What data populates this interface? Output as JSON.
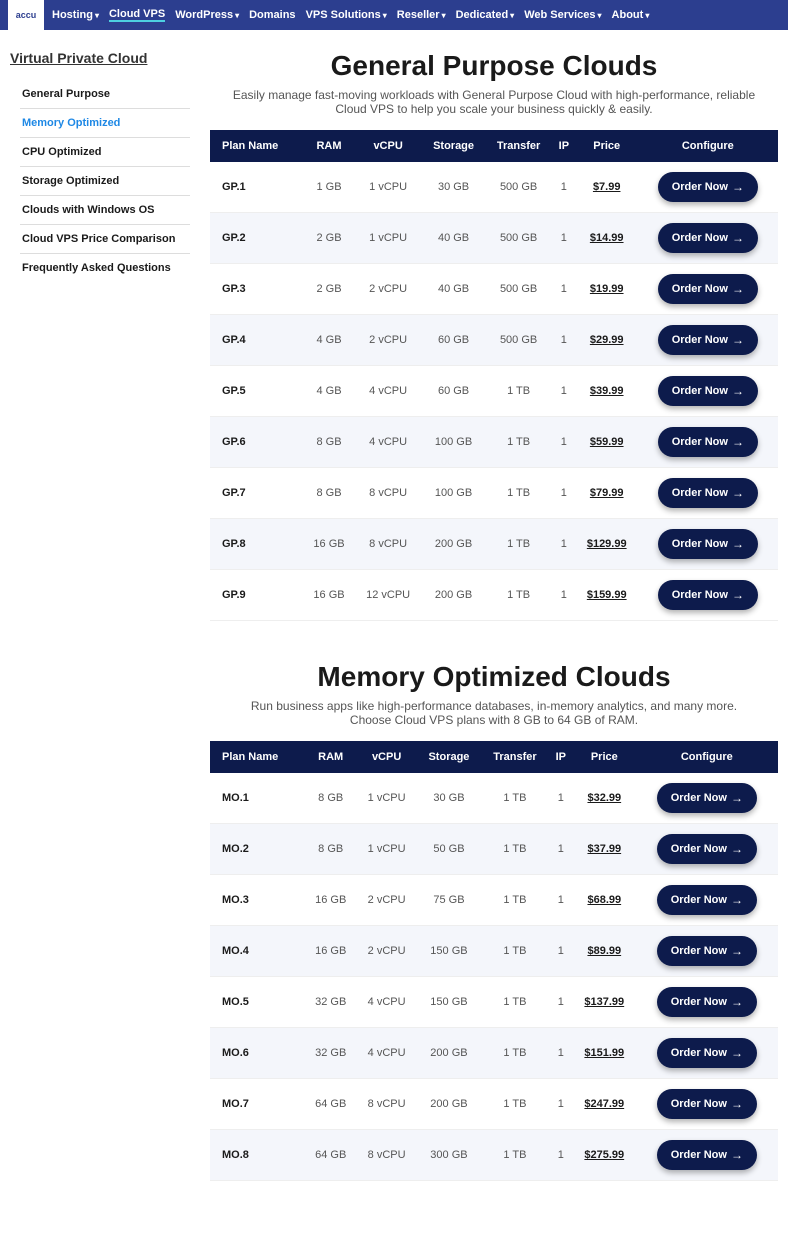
{
  "logo": "accu",
  "nav": [
    {
      "label": "Hosting",
      "caret": true
    },
    {
      "label": "Cloud VPS",
      "caret": false,
      "active": true
    },
    {
      "label": "WordPress",
      "caret": true
    },
    {
      "label": "Domains",
      "caret": false
    },
    {
      "label": "VPS Solutions",
      "caret": true
    },
    {
      "label": "Reseller",
      "caret": true
    },
    {
      "label": "Dedicated",
      "caret": true
    },
    {
      "label": "Web Services",
      "caret": true
    },
    {
      "label": "About",
      "caret": true
    }
  ],
  "sidebar": {
    "title": "Virtual Private Cloud",
    "items": [
      {
        "label": "General Purpose"
      },
      {
        "label": "Memory Optimized",
        "active": true
      },
      {
        "label": "CPU Optimized"
      },
      {
        "label": "Storage Optimized"
      },
      {
        "label": "Clouds with Windows OS"
      },
      {
        "label": "Cloud VPS Price Comparison"
      },
      {
        "label": "Frequently Asked Questions"
      }
    ]
  },
  "table_headers": [
    "Plan Name",
    "RAM",
    "vCPU",
    "Storage",
    "Transfer",
    "IP",
    "Price",
    "Configure"
  ],
  "order_label": "Order Now",
  "sections": [
    {
      "title": "General Purpose Clouds",
      "desc": "Easily manage fast-moving workloads with General Purpose Cloud with high-performance, reliable Cloud VPS to help you scale your business quickly & easily.",
      "rows": [
        {
          "name": "GP.1",
          "ram": "1 GB",
          "vcpu": "1 vCPU",
          "storage": "30 GB",
          "transfer": "500 GB",
          "ip": "1",
          "price": "$7.99"
        },
        {
          "name": "GP.2",
          "ram": "2 GB",
          "vcpu": "1 vCPU",
          "storage": "40 GB",
          "transfer": "500 GB",
          "ip": "1",
          "price": "$14.99"
        },
        {
          "name": "GP.3",
          "ram": "2 GB",
          "vcpu": "2 vCPU",
          "storage": "40 GB",
          "transfer": "500 GB",
          "ip": "1",
          "price": "$19.99"
        },
        {
          "name": "GP.4",
          "ram": "4 GB",
          "vcpu": "2 vCPU",
          "storage": "60 GB",
          "transfer": "500 GB",
          "ip": "1",
          "price": "$29.99"
        },
        {
          "name": "GP.5",
          "ram": "4 GB",
          "vcpu": "4 vCPU",
          "storage": "60 GB",
          "transfer": "1 TB",
          "ip": "1",
          "price": "$39.99"
        },
        {
          "name": "GP.6",
          "ram": "8 GB",
          "vcpu": "4 vCPU",
          "storage": "100 GB",
          "transfer": "1 TB",
          "ip": "1",
          "price": "$59.99"
        },
        {
          "name": "GP.7",
          "ram": "8 GB",
          "vcpu": "8 vCPU",
          "storage": "100 GB",
          "transfer": "1 TB",
          "ip": "1",
          "price": "$79.99"
        },
        {
          "name": "GP.8",
          "ram": "16 GB",
          "vcpu": "8 vCPU",
          "storage": "200 GB",
          "transfer": "1 TB",
          "ip": "1",
          "price": "$129.99"
        },
        {
          "name": "GP.9",
          "ram": "16 GB",
          "vcpu": "12 vCPU",
          "storage": "200 GB",
          "transfer": "1 TB",
          "ip": "1",
          "price": "$159.99"
        }
      ]
    },
    {
      "title": "Memory Optimized Clouds",
      "desc": "Run business apps like high-performance databases, in-memory analytics, and many more. Choose Cloud VPS plans with 8 GB to 64 GB of RAM.",
      "rows": [
        {
          "name": "MO.1",
          "ram": "8 GB",
          "vcpu": "1 vCPU",
          "storage": "30 GB",
          "transfer": "1 TB",
          "ip": "1",
          "price": "$32.99"
        },
        {
          "name": "MO.2",
          "ram": "8 GB",
          "vcpu": "1 vCPU",
          "storage": "50 GB",
          "transfer": "1 TB",
          "ip": "1",
          "price": "$37.99"
        },
        {
          "name": "MO.3",
          "ram": "16 GB",
          "vcpu": "2 vCPU",
          "storage": "75 GB",
          "transfer": "1 TB",
          "ip": "1",
          "price": "$68.99"
        },
        {
          "name": "MO.4",
          "ram": "16 GB",
          "vcpu": "2 vCPU",
          "storage": "150 GB",
          "transfer": "1 TB",
          "ip": "1",
          "price": "$89.99"
        },
        {
          "name": "MO.5",
          "ram": "32 GB",
          "vcpu": "4 vCPU",
          "storage": "150 GB",
          "transfer": "1 TB",
          "ip": "1",
          "price": "$137.99"
        },
        {
          "name": "MO.6",
          "ram": "32 GB",
          "vcpu": "4 vCPU",
          "storage": "200 GB",
          "transfer": "1 TB",
          "ip": "1",
          "price": "$151.99"
        },
        {
          "name": "MO.7",
          "ram": "64 GB",
          "vcpu": "8 vCPU",
          "storage": "200 GB",
          "transfer": "1 TB",
          "ip": "1",
          "price": "$247.99"
        },
        {
          "name": "MO.8",
          "ram": "64 GB",
          "vcpu": "8 vCPU",
          "storage": "300 GB",
          "transfer": "1 TB",
          "ip": "1",
          "price": "$275.99"
        }
      ]
    }
  ],
  "colors": {
    "navbar_bg": "#2c3e8f",
    "table_header_bg": "#0d1b4c",
    "button_bg": "#0d1b4c",
    "active_link": "#1e88e5",
    "row_alt_bg": "#f4f6fb"
  }
}
